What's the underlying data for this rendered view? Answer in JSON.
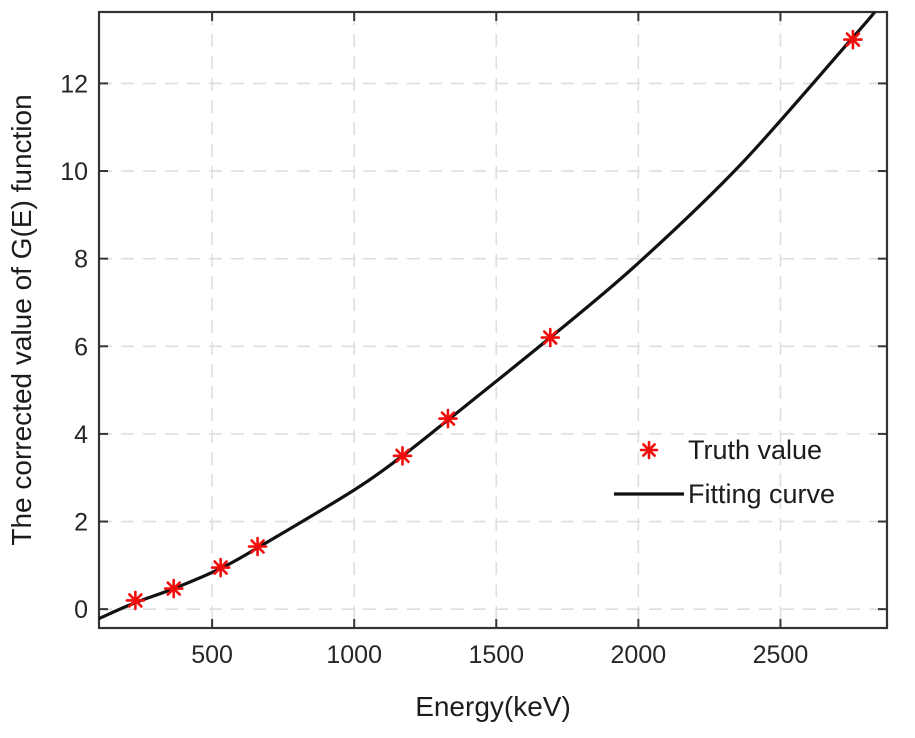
{
  "figure": {
    "background": "#ffffff"
  },
  "chart_data": {
    "type": "scatter",
    "title": "",
    "xlabel": "Energy(keV)",
    "ylabel": "The corrected value of G(E) function",
    "xlim": [
      102,
      2875
    ],
    "ylim": [
      -0.43,
      13.63
    ],
    "xticks": [
      500,
      1000,
      1500,
      2000,
      2500
    ],
    "yticks": [
      0,
      2,
      4,
      6,
      8,
      10,
      12
    ],
    "grid": {
      "visible": true,
      "style": "dashed",
      "color": "#dedede"
    },
    "axis_color": "#333333",
    "tick_text_color": "#262626",
    "legend": {
      "position": "middle-right",
      "border": "none",
      "items": [
        "Truth value",
        "Fitting curve"
      ]
    },
    "series": [
      {
        "name": "Truth value",
        "type": "scatter",
        "marker": "asterisk",
        "color": "#f20d0d",
        "x": [
          230,
          365,
          530,
          660,
          1170,
          1330,
          1690,
          2755
        ],
        "y": [
          0.2,
          0.47,
          0.95,
          1.43,
          3.5,
          4.35,
          6.2,
          13.0
        ]
      },
      {
        "name": "Fitting curve",
        "type": "line",
        "color": "#111111",
        "x": [
          100,
          230,
          365,
          530,
          660,
          1000,
          1170,
          1330,
          1690,
          2000,
          2360,
          2755,
          2832
        ],
        "y": [
          -0.22,
          0.15,
          0.47,
          0.93,
          1.4,
          2.72,
          3.5,
          4.32,
          6.2,
          7.9,
          10.15,
          13.05,
          13.63
        ]
      }
    ]
  }
}
